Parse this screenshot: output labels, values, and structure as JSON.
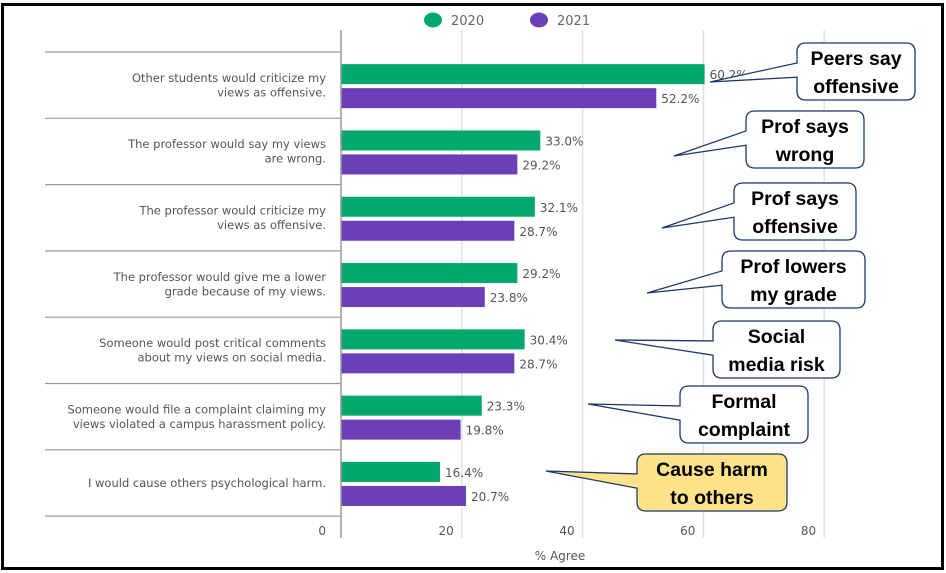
{
  "chart_data": {
    "type": "bar",
    "orientation": "horizontal",
    "title": "",
    "xlabel": "% Agree",
    "ylabel": "",
    "xlim": [
      0,
      80
    ],
    "xticks": [
      0,
      20,
      40,
      60,
      80
    ],
    "grid": true,
    "legend_position": "top-center",
    "categories": [
      [
        "Other students would criticize my",
        "views as offensive."
      ],
      [
        "The professor would say my views",
        "are wrong."
      ],
      [
        "The professor would criticize my",
        "views as offensive."
      ],
      [
        "The professor would give me a lower",
        "grade because of my views."
      ],
      [
        "Someone would post critical comments",
        "about my views on social media."
      ],
      [
        "Someone would file a complaint claiming my",
        "views violated a campus harassment policy."
      ],
      [
        "I would cause others psychological harm."
      ]
    ],
    "series": [
      {
        "name": "2020",
        "color": "#00a86b",
        "values": [
          60.2,
          33.0,
          32.1,
          29.2,
          30.4,
          23.3,
          16.4
        ],
        "labels": [
          "60.2%",
          "33.0%",
          "32.1%",
          "29.2%",
          "30.4%",
          "23.3%",
          "16.4%"
        ]
      },
      {
        "name": "2021",
        "color": "#6a3fb8",
        "values": [
          52.2,
          29.2,
          28.7,
          23.8,
          28.7,
          19.8,
          20.7
        ],
        "labels": [
          "52.2%",
          "29.2%",
          "28.7%",
          "23.8%",
          "28.7%",
          "19.8%",
          "20.7%"
        ]
      }
    ],
    "annotations": [
      {
        "category_index": 0,
        "lines": [
          "Peers say",
          "offensive"
        ],
        "fill": "#ffffff",
        "highlight": false
      },
      {
        "category_index": 1,
        "lines": [
          "Prof says",
          "wrong"
        ],
        "fill": "#ffffff",
        "highlight": false
      },
      {
        "category_index": 2,
        "lines": [
          "Prof says",
          "offensive"
        ],
        "fill": "#ffffff",
        "highlight": false
      },
      {
        "category_index": 3,
        "lines": [
          "Prof lowers",
          "my grade"
        ],
        "fill": "#ffffff",
        "highlight": false
      },
      {
        "category_index": 4,
        "lines": [
          "Social",
          "media risk"
        ],
        "fill": "#ffffff",
        "highlight": false
      },
      {
        "category_index": 5,
        "lines": [
          "Formal",
          "complaint"
        ],
        "fill": "#ffffff",
        "highlight": false
      },
      {
        "category_index": 6,
        "lines": [
          "Cause harm",
          "to others"
        ],
        "fill": "#ffe28a",
        "highlight": true
      }
    ],
    "callout_border_color": "#1f3864"
  }
}
